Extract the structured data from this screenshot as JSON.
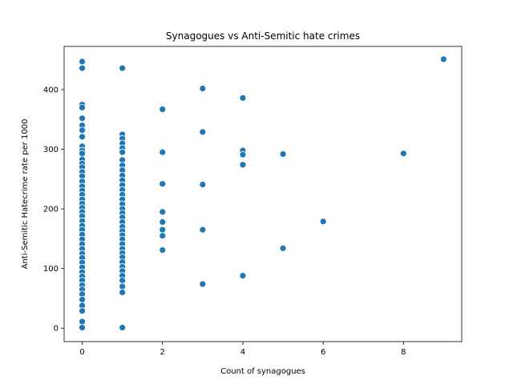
{
  "chart_data": {
    "type": "scatter",
    "title": "Synagogues vs Anti-Semitic hate crimes",
    "xlabel": "Count of synagogues",
    "ylabel": "Anti-Semitic Hatecrime rate per 1000",
    "xlim": [
      -0.45,
      9.45
    ],
    "ylim": [
      -22.5,
      472.5
    ],
    "xticks": [
      0,
      2,
      4,
      6,
      8
    ],
    "yticks": [
      0,
      100,
      200,
      300,
      400
    ],
    "grid": false,
    "legend": "none",
    "marker_color": "#1f77b4",
    "points": [
      {
        "x": 0,
        "y": 447
      },
      {
        "x": 0,
        "y": 436
      },
      {
        "x": 0,
        "y": 375
      },
      {
        "x": 0,
        "y": 370
      },
      {
        "x": 0,
        "y": 352
      },
      {
        "x": 0,
        "y": 340
      },
      {
        "x": 0,
        "y": 332
      },
      {
        "x": 0,
        "y": 321
      },
      {
        "x": 0,
        "y": 305
      },
      {
        "x": 0,
        "y": 298
      },
      {
        "x": 0,
        "y": 293
      },
      {
        "x": 0,
        "y": 283
      },
      {
        "x": 0,
        "y": 276
      },
      {
        "x": 0,
        "y": 270
      },
      {
        "x": 0,
        "y": 262
      },
      {
        "x": 0,
        "y": 255
      },
      {
        "x": 0,
        "y": 246
      },
      {
        "x": 0,
        "y": 238
      },
      {
        "x": 0,
        "y": 231
      },
      {
        "x": 0,
        "y": 224
      },
      {
        "x": 0,
        "y": 216
      },
      {
        "x": 0,
        "y": 209
      },
      {
        "x": 0,
        "y": 202
      },
      {
        "x": 0,
        "y": 195
      },
      {
        "x": 0,
        "y": 188
      },
      {
        "x": 0,
        "y": 180
      },
      {
        "x": 0,
        "y": 172
      },
      {
        "x": 0,
        "y": 165
      },
      {
        "x": 0,
        "y": 157
      },
      {
        "x": 0,
        "y": 149
      },
      {
        "x": 0,
        "y": 141
      },
      {
        "x": 0,
        "y": 133
      },
      {
        "x": 0,
        "y": 125
      },
      {
        "x": 0,
        "y": 118
      },
      {
        "x": 0,
        "y": 110
      },
      {
        "x": 0,
        "y": 102
      },
      {
        "x": 0,
        "y": 94
      },
      {
        "x": 0,
        "y": 87
      },
      {
        "x": 0,
        "y": 80
      },
      {
        "x": 0,
        "y": 72
      },
      {
        "x": 0,
        "y": 65
      },
      {
        "x": 0,
        "y": 57
      },
      {
        "x": 0,
        "y": 48
      },
      {
        "x": 0,
        "y": 38
      },
      {
        "x": 0,
        "y": 29
      },
      {
        "x": 0,
        "y": 11
      },
      {
        "x": 0,
        "y": 1
      },
      {
        "x": 1,
        "y": 436
      },
      {
        "x": 1,
        "y": 325
      },
      {
        "x": 1,
        "y": 318
      },
      {
        "x": 1,
        "y": 310
      },
      {
        "x": 1,
        "y": 302
      },
      {
        "x": 1,
        "y": 295
      },
      {
        "x": 1,
        "y": 282
      },
      {
        "x": 1,
        "y": 273
      },
      {
        "x": 1,
        "y": 265
      },
      {
        "x": 1,
        "y": 256
      },
      {
        "x": 1,
        "y": 248
      },
      {
        "x": 1,
        "y": 240
      },
      {
        "x": 1,
        "y": 232
      },
      {
        "x": 1,
        "y": 224
      },
      {
        "x": 1,
        "y": 216
      },
      {
        "x": 1,
        "y": 208
      },
      {
        "x": 1,
        "y": 200
      },
      {
        "x": 1,
        "y": 193
      },
      {
        "x": 1,
        "y": 186
      },
      {
        "x": 1,
        "y": 178
      },
      {
        "x": 1,
        "y": 170
      },
      {
        "x": 1,
        "y": 163
      },
      {
        "x": 1,
        "y": 156
      },
      {
        "x": 1,
        "y": 149
      },
      {
        "x": 1,
        "y": 141
      },
      {
        "x": 1,
        "y": 133
      },
      {
        "x": 1,
        "y": 126
      },
      {
        "x": 1,
        "y": 119
      },
      {
        "x": 1,
        "y": 111
      },
      {
        "x": 1,
        "y": 103
      },
      {
        "x": 1,
        "y": 96
      },
      {
        "x": 1,
        "y": 88
      },
      {
        "x": 1,
        "y": 80
      },
      {
        "x": 1,
        "y": 70
      },
      {
        "x": 1,
        "y": 60
      },
      {
        "x": 1,
        "y": 1
      },
      {
        "x": 2,
        "y": 367
      },
      {
        "x": 2,
        "y": 295
      },
      {
        "x": 2,
        "y": 242
      },
      {
        "x": 2,
        "y": 195
      },
      {
        "x": 2,
        "y": 178
      },
      {
        "x": 2,
        "y": 165
      },
      {
        "x": 2,
        "y": 155
      },
      {
        "x": 2,
        "y": 131
      },
      {
        "x": 3,
        "y": 402
      },
      {
        "x": 3,
        "y": 329
      },
      {
        "x": 3,
        "y": 241
      },
      {
        "x": 3,
        "y": 165
      },
      {
        "x": 3,
        "y": 74
      },
      {
        "x": 4,
        "y": 386
      },
      {
        "x": 4,
        "y": 298
      },
      {
        "x": 4,
        "y": 291
      },
      {
        "x": 4,
        "y": 274
      },
      {
        "x": 4,
        "y": 88
      },
      {
        "x": 5,
        "y": 292
      },
      {
        "x": 5,
        "y": 134
      },
      {
        "x": 6,
        "y": 179
      },
      {
        "x": 8,
        "y": 293
      },
      {
        "x": 9,
        "y": 451
      }
    ]
  }
}
